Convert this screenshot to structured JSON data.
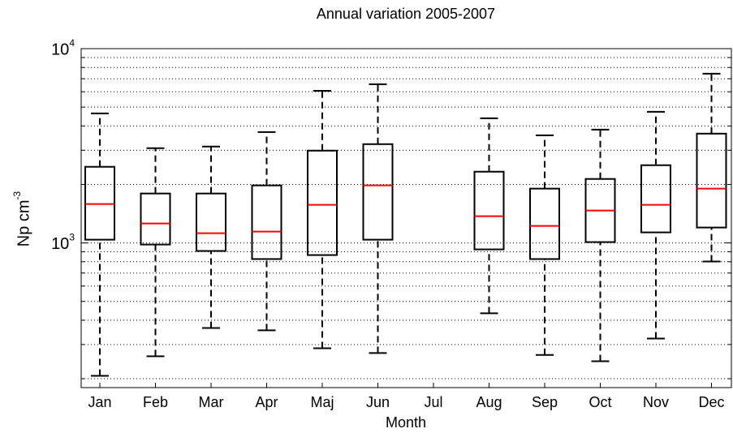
{
  "chart_data": {
    "type": "box",
    "title": "Annual variation 2005-2007",
    "x_label": "Month",
    "y_label": "Np cm^-3",
    "categories": [
      "Jan",
      "Feb",
      "Mar",
      "Apr",
      "Maj",
      "Jun",
      "Jul",
      "Aug",
      "Sep",
      "Oct",
      "Nov",
      "Dec"
    ],
    "whisker_low": [
      207,
      261,
      365,
      355,
      287,
      271,
      null,
      434,
      265,
      246,
      322,
      802
    ],
    "q1": [
      1039,
      981,
      909,
      826,
      866,
      1039,
      null,
      926,
      826,
      1010,
      1133,
      1200
    ],
    "median": [
      1585,
      1259,
      1122,
      1143,
      1570,
      1977,
      null,
      1373,
      1223,
      1468,
      1570,
      1903
    ],
    "q3": [
      2465,
      1796,
      1796,
      1977,
      2985,
      3224,
      null,
      2326,
      1903,
      2134,
      2512,
      3652
    ],
    "whisker_high": [
      4640,
      3073,
      3133,
      3720,
      6070,
      6560,
      null,
      4380,
      3580,
      3830,
      4730,
      7430
    ],
    "box_color": "#000000",
    "median_color": "#ff0000",
    "log_scale": true,
    "ylim": [
      180,
      10000
    ],
    "yticks": [
      {
        "value": 1000,
        "label": "10^3"
      },
      {
        "value": 10000,
        "label": "10^4"
      }
    ],
    "minor_yticks": [
      200,
      300,
      400,
      500,
      600,
      700,
      800,
      900,
      2000,
      3000,
      4000,
      5000,
      6000,
      7000,
      8000,
      9000
    ],
    "grid": true
  }
}
